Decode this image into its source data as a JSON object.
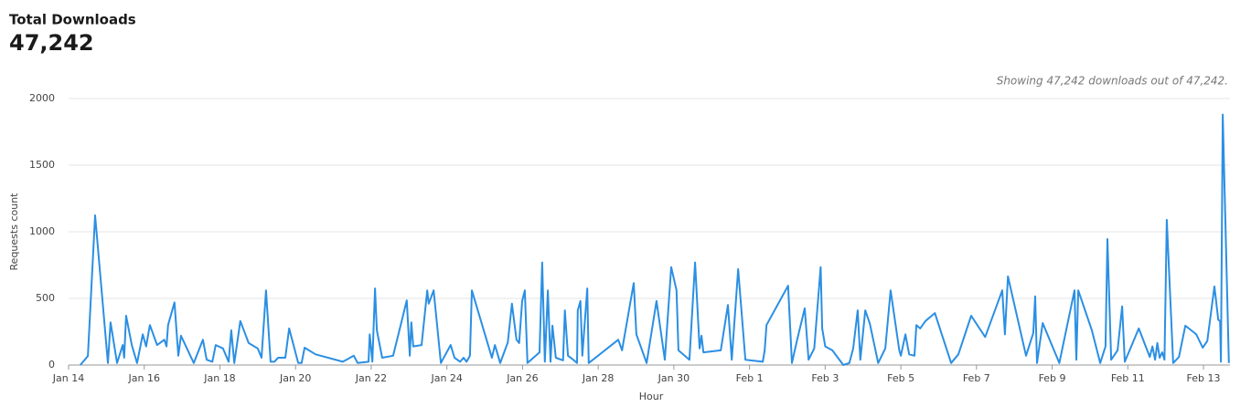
{
  "chart_data": {
    "type": "line",
    "title": "Total Downloads",
    "subtitle": "47,242",
    "annotation": "Showing 47,242 downloads out of 47,242.",
    "x_label": "Hour",
    "y_label": "Requests count",
    "xlim": [
      0,
      30.7
    ],
    "xticks": [
      {
        "value": 0,
        "label": "Jan 14"
      },
      {
        "value": 2,
        "label": "Jan 16"
      },
      {
        "value": 4,
        "label": "Jan 18"
      },
      {
        "value": 6,
        "label": "Jan 20"
      },
      {
        "value": 8,
        "label": "Jan 22"
      },
      {
        "value": 10,
        "label": "Jan 24"
      },
      {
        "value": 12,
        "label": "Jan 26"
      },
      {
        "value": 14,
        "label": "Jan 28"
      },
      {
        "value": 16,
        "label": "Jan 30"
      },
      {
        "value": 18,
        "label": "Feb 1"
      },
      {
        "value": 20,
        "label": "Feb 3"
      },
      {
        "value": 22,
        "label": "Feb 5"
      },
      {
        "value": 24,
        "label": "Feb 7"
      },
      {
        "value": 26,
        "label": "Feb 9"
      },
      {
        "value": 28,
        "label": "Feb 11"
      },
      {
        "value": 30,
        "label": "Feb 13"
      }
    ],
    "ylim": [
      0,
      2000
    ],
    "yticks": [
      0,
      500,
      1000,
      1500,
      2000
    ],
    "grid": true,
    "color": "#2b8fe3",
    "x": [
      0.31,
      0.51,
      0.7,
      1.04,
      1.11,
      1.28,
      1.43,
      1.47,
      1.52,
      1.67,
      1.81,
      1.96,
      2.05,
      2.15,
      2.34,
      2.53,
      2.59,
      2.63,
      2.8,
      2.9,
      2.97,
      3.31,
      3.55,
      3.65,
      3.8,
      3.89,
      4.08,
      4.23,
      4.3,
      4.38,
      4.54,
      4.76,
      5.0,
      5.1,
      5.22,
      5.34,
      5.44,
      5.54,
      5.73,
      5.83,
      6.07,
      6.16,
      6.24,
      6.53,
      7.25,
      7.54,
      7.64,
      7.93,
      7.96,
      8.03,
      8.1,
      8.15,
      8.29,
      8.58,
      8.94,
      9.02,
      9.06,
      9.11,
      9.33,
      9.48,
      9.52,
      9.65,
      9.84,
      10.1,
      10.2,
      10.35,
      10.44,
      10.52,
      10.61,
      10.66,
      11.19,
      11.27,
      11.41,
      11.61,
      11.72,
      11.84,
      11.91,
      11.99,
      12.06,
      12.13,
      12.45,
      12.52,
      12.59,
      12.67,
      12.74,
      12.79,
      12.88,
      13.07,
      13.12,
      13.2,
      13.34,
      13.44,
      13.46,
      13.53,
      13.58,
      13.71,
      13.75,
      14.53,
      14.63,
      14.94,
      15.01,
      15.28,
      15.54,
      15.76,
      15.93,
      16.07,
      16.12,
      16.41,
      16.56,
      16.68,
      16.73,
      16.78,
      17.24,
      17.43,
      17.53,
      17.7,
      17.89,
      18.35,
      18.4,
      18.45,
      19.02,
      19.12,
      19.26,
      19.46,
      19.56,
      19.71,
      19.88,
      19.92,
      20.0,
      20.19,
      20.48,
      20.64,
      20.74,
      20.86,
      20.93,
      21.06,
      21.18,
      21.4,
      21.59,
      21.73,
      21.96,
      22.0,
      22.12,
      22.22,
      22.36,
      22.41,
      22.51,
      22.65,
      22.9,
      23.33,
      23.52,
      23.86,
      24.23,
      24.68,
      24.75,
      24.83,
      25.31,
      25.5,
      25.55,
      25.6,
      25.75,
      26.19,
      26.59,
      26.64,
      26.69,
      27.05,
      27.27,
      27.41,
      27.46,
      27.56,
      27.73,
      27.85,
      27.92,
      28.29,
      28.58,
      28.65,
      28.72,
      28.78,
      28.84,
      28.91,
      28.97,
      29.03,
      29.2,
      29.35,
      29.52,
      29.81,
      29.98,
      30.1,
      30.29,
      30.39,
      30.44,
      30.46,
      30.51,
      30.67
    ],
    "values": [
      0,
      68,
      1123,
      15,
      320,
      15,
      150,
      55,
      370,
      150,
      15,
      230,
      140,
      300,
      150,
      190,
      140,
      300,
      470,
      70,
      220,
      15,
      190,
      40,
      25,
      150,
      125,
      25,
      260,
      15,
      330,
      165,
      125,
      55,
      560,
      25,
      25,
      55,
      55,
      275,
      15,
      15,
      130,
      80,
      25,
      70,
      15,
      25,
      230,
      25,
      575,
      260,
      55,
      70,
      485,
      70,
      320,
      140,
      150,
      560,
      460,
      560,
      15,
      150,
      55,
      25,
      55,
      25,
      70,
      560,
      55,
      150,
      15,
      170,
      460,
      190,
      165,
      480,
      560,
      15,
      95,
      770,
      25,
      560,
      25,
      295,
      55,
      35,
      410,
      70,
      40,
      15,
      410,
      480,
      70,
      575,
      15,
      190,
      110,
      615,
      230,
      15,
      480,
      40,
      735,
      560,
      110,
      40,
      770,
      125,
      220,
      95,
      110,
      450,
      40,
      720,
      40,
      25,
      110,
      300,
      595,
      15,
      190,
      425,
      40,
      125,
      735,
      275,
      140,
      110,
      0,
      15,
      125,
      410,
      40,
      410,
      310,
      15,
      125,
      560,
      110,
      70,
      230,
      80,
      70,
      300,
      275,
      330,
      390,
      15,
      80,
      370,
      210,
      560,
      230,
      665,
      70,
      240,
      515,
      15,
      315,
      15,
      560,
      40,
      560,
      260,
      15,
      140,
      945,
      40,
      110,
      440,
      25,
      275,
      60,
      140,
      40,
      165,
      55,
      95,
      40,
      1090,
      15,
      60,
      295,
      230,
      130,
      180,
      590,
      340,
      330,
      25,
      1880,
      15
    ]
  }
}
